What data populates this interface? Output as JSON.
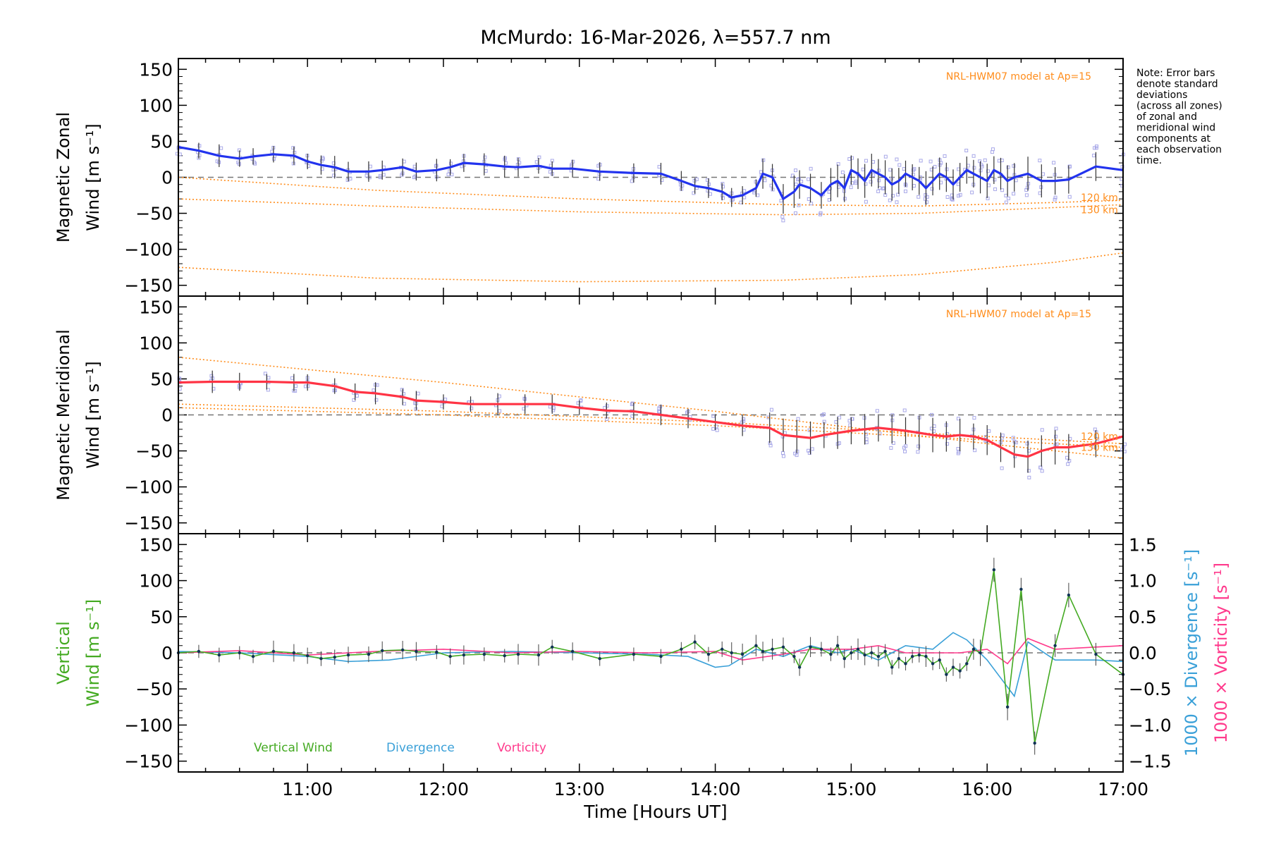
{
  "chart_data": {
    "type": "line",
    "title": "McMurdo: 16-Mar-2026, λ=557.7 nm",
    "xlabel": "Time [Hours UT]",
    "x_ticks": [
      "11:00",
      "12:00",
      "13:00",
      "14:00",
      "15:00",
      "16:00",
      "17:00"
    ],
    "x_tick_values": [
      11,
      12,
      13,
      14,
      15,
      16,
      17
    ],
    "xlim": [
      10.05,
      17.0
    ],
    "note": [
      "Note: Error bars",
      "denote standard",
      "deviations",
      "(across all zones)",
      "of zonal and",
      "meridional wind",
      "components at",
      "each observation",
      "time."
    ],
    "colors": {
      "zonal": "#2233ee",
      "meridional": "#ff3344",
      "model": "#ff8c1a",
      "vertical": "#44aa22",
      "divergence": "#3aa0d8",
      "vorticity": "#ff3a8c",
      "scatter": "#a8a8e8"
    },
    "panels": [
      {
        "name": "zonal",
        "ylabel_lines": [
          "Magnetic Zonal",
          "Wind [m s⁻¹]"
        ],
        "ylim": [
          -165,
          165
        ],
        "y_ticks": [
          "150",
          "100",
          "50",
          "0",
          "−50",
          "−100",
          "−150"
        ],
        "y_tick_values": [
          150,
          100,
          50,
          0,
          -50,
          -100,
          -150
        ],
        "model_label": "NRL-HWM07 model at Ap=15",
        "model_alt_labels": [
          "120 km",
          "130 km"
        ],
        "series": {
          "name": "Zonal wind",
          "x": [
            10.05,
            10.2,
            10.35,
            10.5,
            10.6,
            10.75,
            10.9,
            11.0,
            11.1,
            11.2,
            11.3,
            11.45,
            11.55,
            11.7,
            11.8,
            11.95,
            12.05,
            12.15,
            12.3,
            12.45,
            12.55,
            12.7,
            12.8,
            12.95,
            13.15,
            13.4,
            13.6,
            13.75,
            13.85,
            13.95,
            14.05,
            14.12,
            14.2,
            14.3,
            14.35,
            14.42,
            14.5,
            14.58,
            14.62,
            14.7,
            14.78,
            14.85,
            14.9,
            14.95,
            15.0,
            15.05,
            15.1,
            15.15,
            15.2,
            15.25,
            15.3,
            15.35,
            15.4,
            15.45,
            15.5,
            15.55,
            15.6,
            15.65,
            15.7,
            15.75,
            15.8,
            15.85,
            15.9,
            15.95,
            16.0,
            16.05,
            16.1,
            16.15,
            16.2,
            16.3,
            16.4,
            16.5,
            16.6,
            16.8,
            17.0
          ],
          "y": [
            42,
            37,
            30,
            26,
            29,
            32,
            30,
            22,
            17,
            14,
            8,
            8,
            10,
            14,
            8,
            10,
            14,
            20,
            18,
            15,
            14,
            16,
            12,
            12,
            8,
            6,
            5,
            -5,
            -12,
            -15,
            -20,
            -28,
            -25,
            -15,
            5,
            0,
            -30,
            -20,
            -10,
            -15,
            -25,
            -10,
            -5,
            -15,
            10,
            5,
            -5,
            10,
            5,
            0,
            -10,
            -5,
            5,
            0,
            -5,
            -15,
            -5,
            5,
            0,
            -10,
            0,
            10,
            5,
            0,
            -5,
            10,
            5,
            -5,
            0,
            5,
            -5,
            -5,
            -3,
            15,
            10
          ]
        },
        "models": [
          {
            "x": [
              10.05,
              11.5,
              13.0,
              14.5,
              15.5,
              16.5,
              17.0
            ],
            "y": [
              0,
              -18,
              -30,
              -38,
              -40,
              -35,
              -32
            ]
          },
          {
            "x": [
              10.05,
              11.5,
              13.0,
              14.5,
              15.5,
              16.5,
              17.0
            ],
            "y": [
              -30,
              -40,
              -48,
              -52,
              -50,
              -42,
              -38
            ]
          },
          {
            "x": [
              10.05,
              11.5,
              13.0,
              14.5,
              15.5,
              16.5,
              17.0
            ],
            "y": [
              -125,
              -140,
              -145,
              -143,
              -135,
              -118,
              -105
            ]
          }
        ]
      },
      {
        "name": "meridional",
        "ylabel_lines": [
          "Magnetic Meridional",
          "Wind [m s⁻¹]"
        ],
        "ylim": [
          -165,
          165
        ],
        "y_ticks": [
          "150",
          "100",
          "50",
          "0",
          "−50",
          "−100",
          "−150"
        ],
        "y_tick_values": [
          150,
          100,
          50,
          0,
          -50,
          -100,
          -150
        ],
        "model_label": "NRL-HWM07 model at Ap=15",
        "model_alt_labels": [
          "120 km",
          "130 km"
        ],
        "series": {
          "name": "Meridional wind",
          "x": [
            10.05,
            10.3,
            10.5,
            10.7,
            10.9,
            11.0,
            11.2,
            11.35,
            11.5,
            11.7,
            11.8,
            12.0,
            12.2,
            12.4,
            12.6,
            12.8,
            13.0,
            13.2,
            13.4,
            13.6,
            13.8,
            14.0,
            14.2,
            14.4,
            14.5,
            14.6,
            14.7,
            14.8,
            14.9,
            15.0,
            15.1,
            15.2,
            15.3,
            15.4,
            15.5,
            15.6,
            15.7,
            15.8,
            15.9,
            16.0,
            16.1,
            16.2,
            16.3,
            16.4,
            16.5,
            16.6,
            16.8,
            17.0
          ],
          "y": [
            45,
            46,
            46,
            46,
            45,
            45,
            40,
            32,
            30,
            25,
            20,
            18,
            15,
            15,
            15,
            15,
            10,
            6,
            5,
            0,
            -5,
            -10,
            -15,
            -18,
            -28,
            -30,
            -32,
            -28,
            -25,
            -22,
            -20,
            -18,
            -20,
            -22,
            -25,
            -28,
            -30,
            -28,
            -30,
            -35,
            -45,
            -55,
            -58,
            -50,
            -45,
            -45,
            -40,
            -30
          ]
        },
        "models": [
          {
            "x": [
              10.05,
              12.0,
              14.0,
              16.0,
              17.0
            ],
            "y": [
              80,
              45,
              5,
              -40,
              -60
            ]
          },
          {
            "x": [
              10.05,
              12.0,
              14.0,
              16.0,
              17.0
            ],
            "y": [
              15,
              5,
              -10,
              -30,
              -40
            ]
          },
          {
            "x": [
              10.05,
              12.0,
              14.0,
              16.0,
              17.0
            ],
            "y": [
              10,
              0,
              -15,
              -35,
              -45
            ]
          }
        ]
      },
      {
        "name": "vertical",
        "ylabel_lines": [
          "Vertical",
          "Wind [m s⁻¹]"
        ],
        "ylim": [
          -165,
          165
        ],
        "y_ticks": [
          "150",
          "100",
          "50",
          "0",
          "−50",
          "−100",
          "−150"
        ],
        "y_tick_values": [
          150,
          100,
          50,
          0,
          -50,
          -100,
          -150
        ],
        "y2_label_div": "1000 × Divergence [s⁻¹]",
        "y2_label_vort": "1000 × Vorticity [s⁻¹]",
        "y2_lim": [
          -1.65,
          1.65
        ],
        "y2_ticks": [
          "1.5",
          "1.0",
          "0.5",
          "0.0",
          "−0.5",
          "−1.0",
          "−1.5"
        ],
        "y2_tick_values": [
          1.5,
          1.0,
          0.5,
          0.0,
          -0.5,
          -1.0,
          -1.5
        ],
        "legend": [
          "Vertical Wind",
          "Divergence",
          "Vorticity"
        ],
        "vertical": {
          "x": [
            10.05,
            10.2,
            10.35,
            10.5,
            10.6,
            10.75,
            10.9,
            11.0,
            11.1,
            11.2,
            11.3,
            11.45,
            11.55,
            11.7,
            11.8,
            11.95,
            12.05,
            12.15,
            12.3,
            12.45,
            12.55,
            12.7,
            12.8,
            12.95,
            13.15,
            13.4,
            13.6,
            13.75,
            13.85,
            13.95,
            14.05,
            14.12,
            14.2,
            14.3,
            14.35,
            14.42,
            14.5,
            14.58,
            14.62,
            14.7,
            14.78,
            14.85,
            14.9,
            14.95,
            15.0,
            15.05,
            15.1,
            15.15,
            15.2,
            15.25,
            15.3,
            15.35,
            15.4,
            15.45,
            15.5,
            15.55,
            15.6,
            15.65,
            15.7,
            15.75,
            15.8,
            15.85,
            15.9,
            15.95,
            16.05,
            16.15,
            16.25,
            16.35,
            16.5,
            16.6,
            16.8,
            17.0
          ],
          "y": [
            0,
            2,
            -3,
            0,
            -5,
            2,
            0,
            -4,
            -8,
            -6,
            -3,
            -2,
            3,
            4,
            2,
            1,
            -5,
            -3,
            -2,
            -4,
            -2,
            -3,
            8,
            2,
            -8,
            -2,
            -5,
            5,
            15,
            -2,
            5,
            0,
            -2,
            10,
            2,
            5,
            8,
            -5,
            -20,
            8,
            5,
            -2,
            10,
            -8,
            0,
            5,
            -3,
            0,
            -5,
            2,
            -20,
            -8,
            -15,
            -5,
            -3,
            -5,
            -15,
            -10,
            -30,
            -20,
            -25,
            -15,
            5,
            0,
            115,
            -75,
            88,
            -125,
            10,
            80,
            -2,
            -30
          ]
        },
        "divergence": {
          "x": [
            10.05,
            10.5,
            11.0,
            11.3,
            11.6,
            12.0,
            12.5,
            13.0,
            13.5,
            13.8,
            14.0,
            14.1,
            14.3,
            14.5,
            14.7,
            14.9,
            15.0,
            15.2,
            15.4,
            15.6,
            15.75,
            15.85,
            16.0,
            16.1,
            16.2,
            16.3,
            16.5,
            16.8,
            17.0
          ],
          "y": [
            0.02,
            0.0,
            -0.05,
            -0.12,
            -0.1,
            0.0,
            0.02,
            0.0,
            -0.02,
            -0.05,
            -0.2,
            -0.18,
            0.05,
            -0.05,
            0.1,
            0.0,
            0.05,
            -0.1,
            0.1,
            0.05,
            0.28,
            0.18,
            -0.1,
            -0.35,
            -0.6,
            0.15,
            -0.1,
            -0.1,
            -0.12
          ]
        },
        "vorticity": {
          "x": [
            10.05,
            10.5,
            11.0,
            11.5,
            12.0,
            12.5,
            13.0,
            13.5,
            14.0,
            14.2,
            14.5,
            14.7,
            15.0,
            15.2,
            15.4,
            15.6,
            15.8,
            16.0,
            16.15,
            16.3,
            16.5,
            16.8,
            17.0
          ],
          "y": [
            0.0,
            0.03,
            -0.03,
            0.02,
            0.05,
            0.0,
            0.02,
            0.0,
            0.02,
            -0.1,
            -0.02,
            0.05,
            0.05,
            0.1,
            0.0,
            0.0,
            0.0,
            0.05,
            -0.15,
            0.2,
            0.05,
            0.08,
            0.1
          ]
        }
      }
    ]
  }
}
